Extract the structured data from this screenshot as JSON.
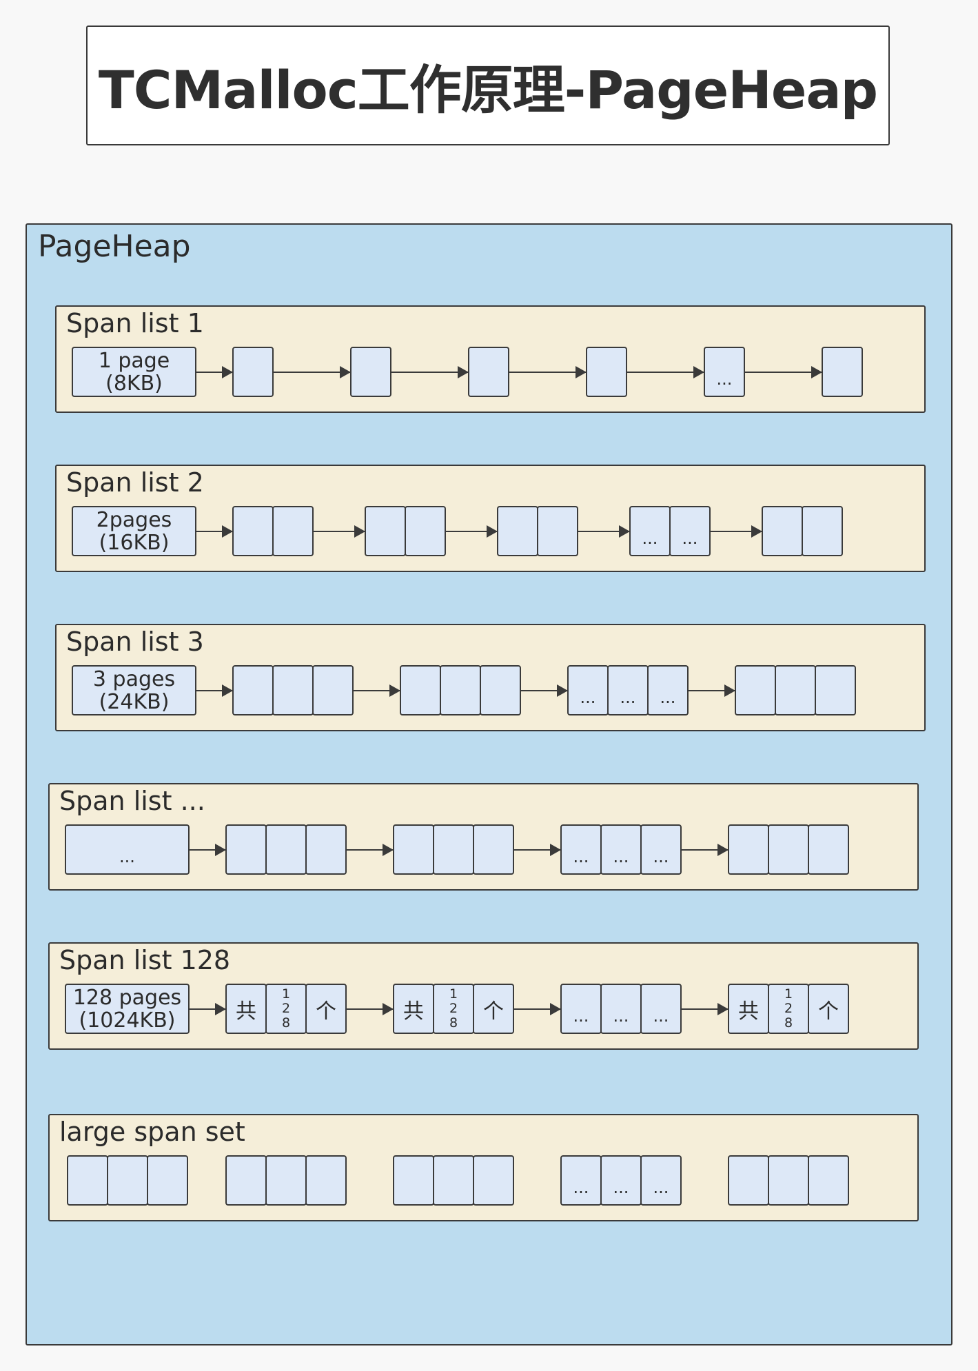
{
  "title": "TCMalloc工作原理-PageHeap",
  "heap_label": "PageHeap",
  "span_lists": [
    {
      "title": "Span list 1",
      "label_line1": "1 page",
      "label_line2": "(8KB)",
      "dots": "..."
    },
    {
      "title": "Span list 2",
      "label_line1": "2pages",
      "label_line2": "(16KB)",
      "dots": "..."
    },
    {
      "title": "Span list 3",
      "label_line1": "3 pages",
      "label_line2": "(24KB)",
      "dots": "..."
    },
    {
      "title": "Span list ...",
      "label_line1": "...",
      "dots": "..."
    },
    {
      "title": "Span list 128",
      "label_line1": "128 pages",
      "label_line2": "(1024KB)",
      "dots": "...",
      "cell_first": "共",
      "cell_mid": "128",
      "cell_last": "个"
    },
    {
      "title": "large span set",
      "dots": "..."
    }
  ],
  "colors": {
    "background": "#f8f8f8",
    "heap_fill": "#bcdcef",
    "span_list_fill": "#f5eed9",
    "cell_fill": "#dde8f7",
    "border": "#3a3a3a"
  }
}
